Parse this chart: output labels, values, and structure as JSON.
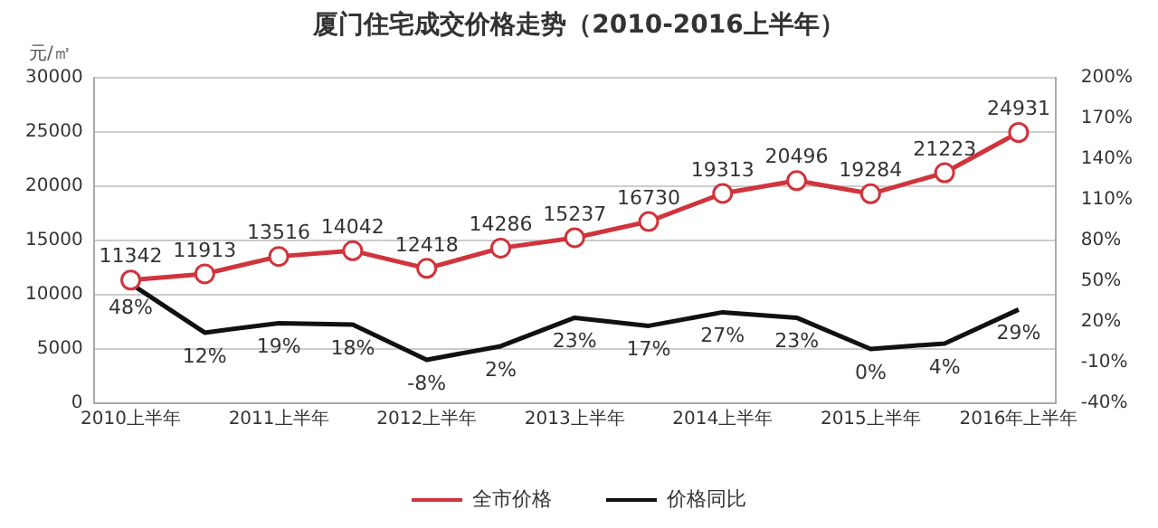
{
  "chart_data": {
    "type": "line",
    "title": "厦门住宅成交价格走势（2010-2016上半年）",
    "ylabel": "元/㎡",
    "categories": [
      "2010上半年",
      null,
      "2011上半年",
      null,
      "2012上半年",
      null,
      "2013上半年",
      null,
      "2014上半年",
      null,
      "2015上半年",
      null,
      "2016年上半年"
    ],
    "series": [
      {
        "name": "全市价格",
        "color": "#d0343c",
        "marker": "circle",
        "values": [
          11342,
          11913,
          13516,
          14042,
          12418,
          14286,
          15237,
          16730,
          19313,
          20496,
          19284,
          21223,
          24931
        ],
        "value_labels": [
          "11342",
          "11913",
          "13516",
          "14042",
          "12418",
          "14286",
          "15237",
          "16730",
          "19313",
          "20496",
          "19284",
          "21223",
          "24931"
        ]
      },
      {
        "name": "价格同比",
        "color": "#111111",
        "axis": "y2",
        "marker": "none",
        "values": [
          48,
          12,
          19,
          18,
          -8,
          2,
          23,
          17,
          27,
          23,
          0,
          4,
          29
        ],
        "value_labels": [
          "48%",
          "12%",
          "19%",
          "18%",
          "-8%",
          "2%",
          "23%",
          "17%",
          "27%",
          "23%",
          "0%",
          "4%",
          "29%"
        ]
      }
    ],
    "ylim": [
      0,
      30000
    ],
    "yticks": [
      0,
      5000,
      10000,
      15000,
      20000,
      25000,
      30000
    ],
    "y2lim": [
      -40,
      200
    ],
    "y2ticks": [
      {
        "value": -40,
        "label": "-40%"
      },
      {
        "value": -10,
        "label": "-10%"
      },
      {
        "value": 20,
        "label": "20%"
      },
      {
        "value": 50,
        "label": "50%"
      },
      {
        "value": 80,
        "label": "80%"
      },
      {
        "value": 110,
        "label": "110%"
      },
      {
        "value": 140,
        "label": "140%"
      },
      {
        "value": 170,
        "label": "170%"
      },
      {
        "value": 200,
        "label": "200%"
      }
    ],
    "grid": "y",
    "legend": "bottom"
  }
}
